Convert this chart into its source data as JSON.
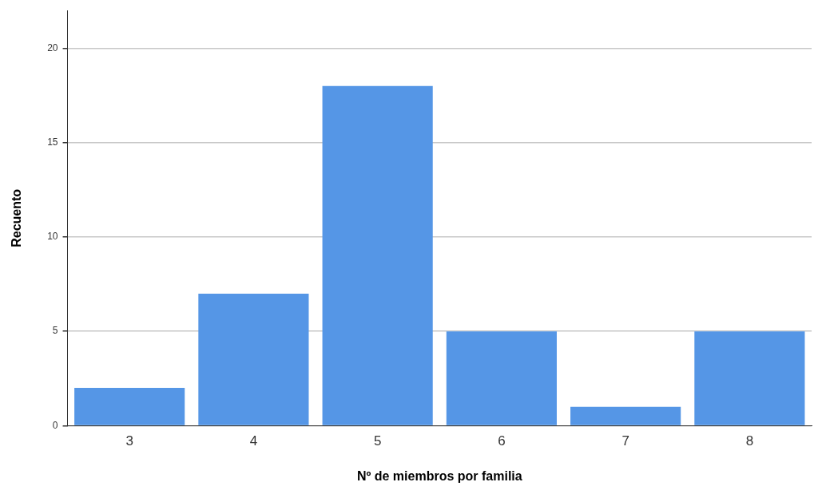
{
  "chart_data": {
    "type": "bar",
    "xlabel": "Nº de miembros por familia",
    "ylabel": "Recuento",
    "categories": [
      "3",
      "4",
      "5",
      "6",
      "7",
      "8"
    ],
    "values": [
      2,
      7,
      18,
      5,
      1,
      5
    ],
    "color": "#5596e6",
    "ylim": [
      0,
      22
    ],
    "yticks": [
      0,
      5,
      10,
      15,
      20
    ],
    "grid": "y"
  }
}
